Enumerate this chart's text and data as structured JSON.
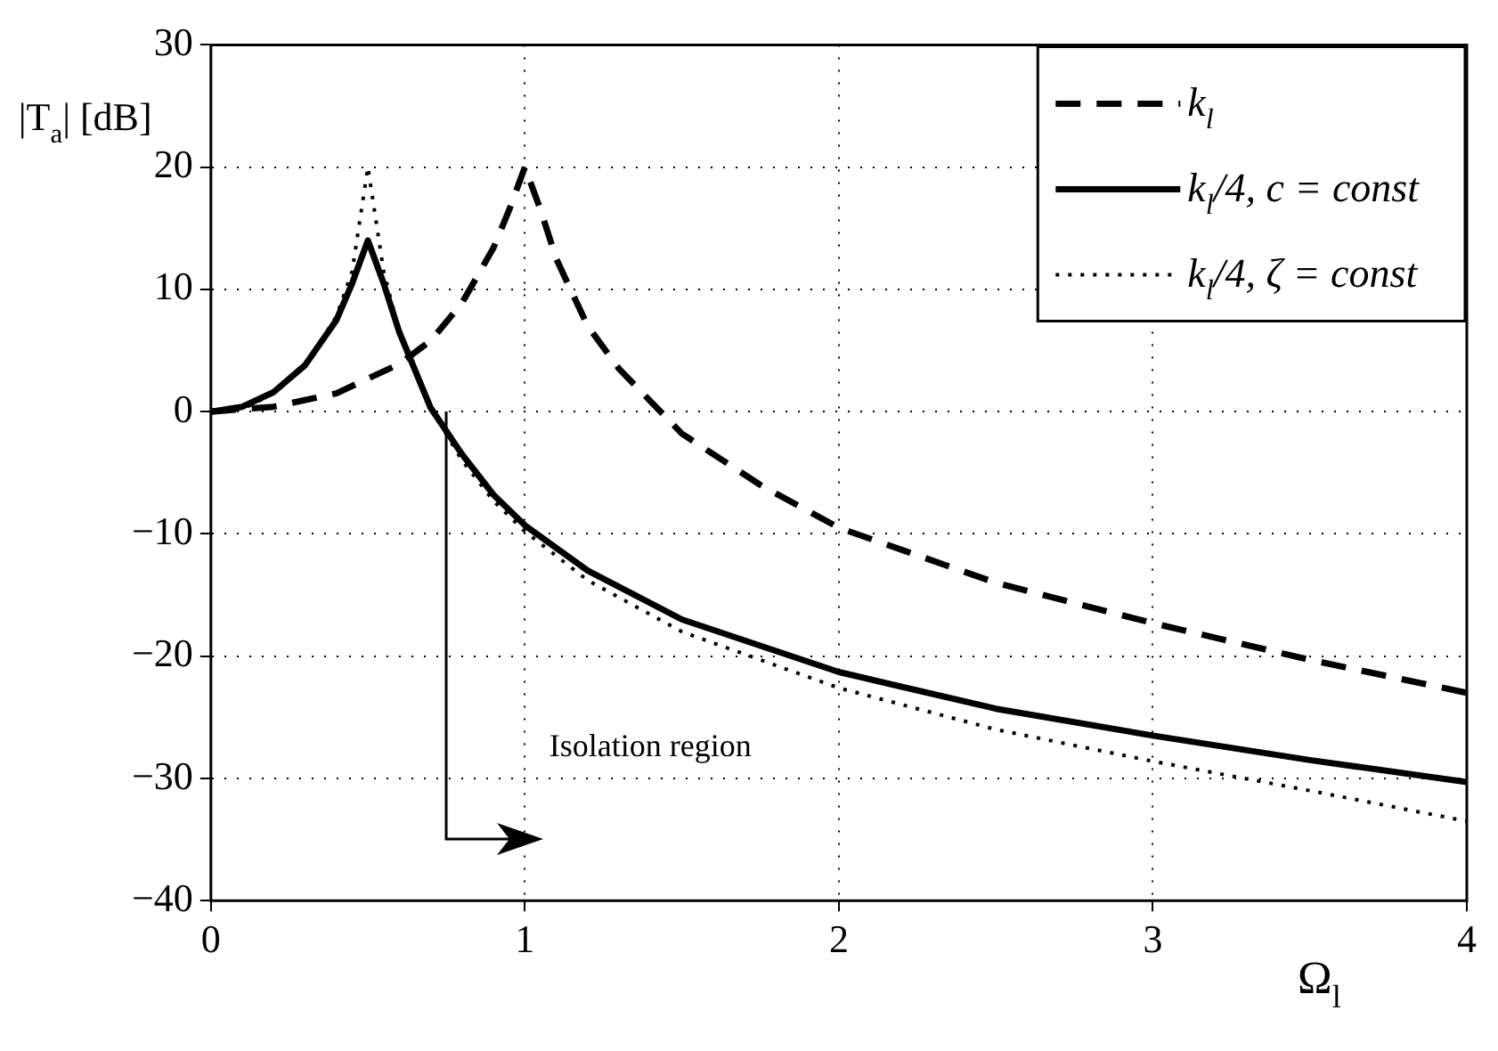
{
  "chart_data": {
    "type": "line",
    "xlabel": "Ω$_{l}$",
    "ylabel": "|T$_{a}$| [dB]",
    "xlim": [
      0,
      4
    ],
    "xticks": [
      0,
      1,
      2,
      3,
      4
    ],
    "ylim": [
      -40,
      30
    ],
    "yticks": [
      -40,
      -30,
      -20,
      -10,
      0,
      10,
      20,
      30
    ],
    "grid": true,
    "legend": "top right",
    "marker": "none",
    "series": [
      {
        "name": "k$_{l}$",
        "color": "#000000",
        "line_style": "dashed",
        "x": [
          0,
          0.2,
          0.4,
          0.6,
          0.7,
          0.8,
          0.9,
          0.95,
          1,
          1.05,
          1.1,
          1.2,
          1.3,
          1.5,
          1.75,
          2,
          2.5,
          3,
          3.5,
          4
        ],
        "values": [
          0,
          0.4,
          1.5,
          3.9,
          5.8,
          8.9,
          13.4,
          16.5,
          20,
          16.5,
          12.5,
          7,
          3.5,
          -1.8,
          -6,
          -9.5,
          -14,
          -17.3,
          -20.3,
          -23
        ]
      },
      {
        "name": "k$_{l}$/4, c = const",
        "color": "#000000",
        "line_style": "solid",
        "x": [
          0,
          0.1,
          0.2,
          0.3,
          0.4,
          0.45,
          0.5,
          0.55,
          0.6,
          0.7,
          0.8,
          0.9,
          1,
          1.2,
          1.5,
          2,
          2.5,
          3,
          3.5,
          4
        ],
        "values": [
          0,
          0.4,
          1.6,
          3.8,
          7.5,
          10.5,
          14,
          10.5,
          6.5,
          0.3,
          -3.5,
          -6.8,
          -9.3,
          -13,
          -17,
          -21.3,
          -24.3,
          -26.5,
          -28.5,
          -30.3
        ]
      },
      {
        "name": "k$_{l}$/4, ζ = const",
        "color": "#000000",
        "line_style": "dotted",
        "x": [
          0,
          0.1,
          0.2,
          0.3,
          0.4,
          0.45,
          0.5,
          0.55,
          0.6,
          0.7,
          0.8,
          0.9,
          1,
          1.2,
          1.5,
          2,
          2.5,
          3,
          3.5,
          4
        ],
        "values": [
          0,
          0.2,
          1.5,
          3.7,
          7.8,
          11.5,
          20,
          11.5,
          6.5,
          0.3,
          -4,
          -7.3,
          -9.8,
          -13.8,
          -18,
          -22.6,
          -26,
          -28.6,
          -31,
          -33.5
        ]
      }
    ],
    "annotations": [
      "Isolation region"
    ]
  }
}
